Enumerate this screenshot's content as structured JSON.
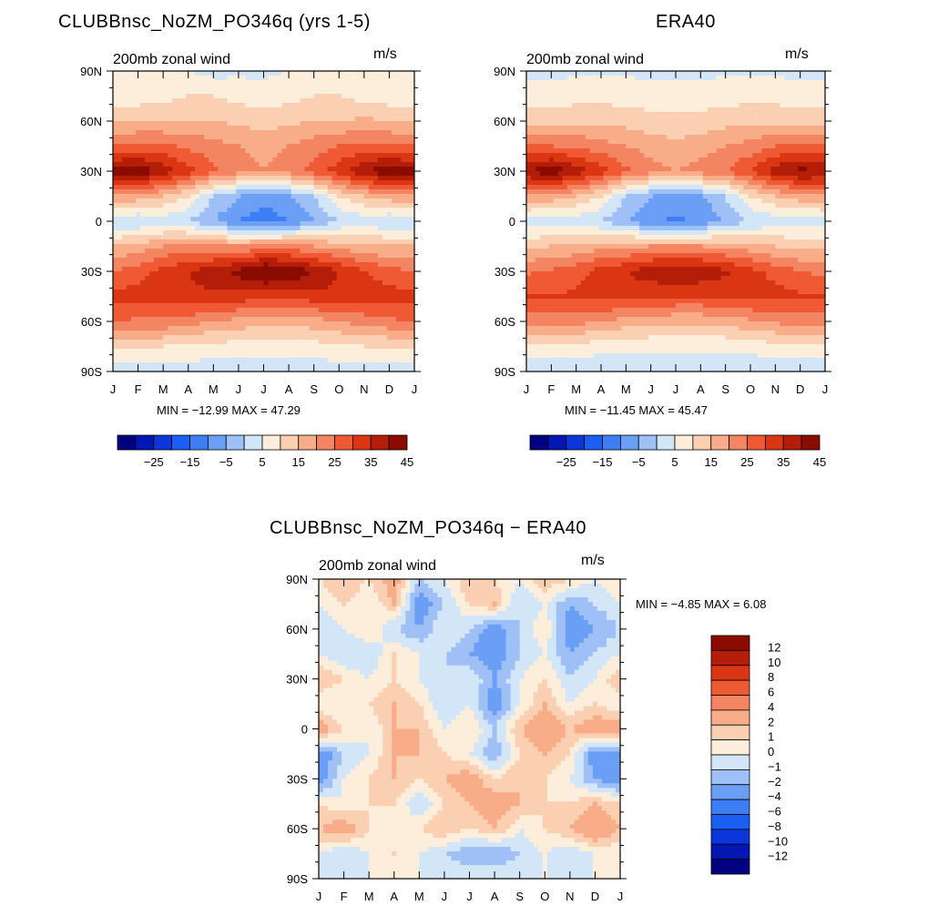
{
  "chart_data": [
    {
      "type": "heatmap",
      "id": "model",
      "title": "CLUBBnsc_NoZM_PO346q (yrs 1-5)",
      "subtitle": "200mb zonal wind",
      "units": "m/s",
      "xlabel": "",
      "ylabel": "",
      "x_ticks": [
        "J",
        "F",
        "M",
        "A",
        "M",
        "J",
        "J",
        "A",
        "S",
        "O",
        "N",
        "D",
        "J"
      ],
      "y_ticks": [
        "90N",
        "60N",
        "30N",
        "0",
        "30S",
        "60S",
        "90S"
      ],
      "ylim": [
        -90,
        90
      ],
      "stats": "MIN = −12.99 MAX =   47.29",
      "min": -12.99,
      "max": 47.29,
      "levels": [
        -30,
        -25,
        -20,
        -15,
        -10,
        -5,
        0,
        5,
        10,
        15,
        20,
        25,
        30,
        35,
        40,
        45
      ],
      "colorbar_labels": [
        "−25",
        "−15",
        "−5",
        "5",
        "15",
        "25",
        "35",
        "45"
      ],
      "field": {
        "lat": [
          90,
          75,
          60,
          45,
          30,
          15,
          0,
          -15,
          -30,
          -45,
          -60,
          -75,
          -90
        ],
        "months": [
          "Jan",
          "Feb",
          "Mar",
          "Apr",
          "May",
          "Jun",
          "Jul",
          "Aug",
          "Sep",
          "Oct",
          "Nov",
          "Dec",
          "Jan"
        ],
        "values": [
          [
            5,
            5,
            5,
            5,
            3,
            4,
            4,
            5,
            5,
            5,
            5,
            5,
            5
          ],
          [
            7,
            7,
            8,
            10,
            10,
            8,
            7,
            8,
            10,
            10,
            8,
            7,
            7
          ],
          [
            14,
            15,
            15,
            15,
            15,
            14,
            13,
            14,
            15,
            15,
            16,
            15,
            14
          ],
          [
            25,
            26,
            26,
            24,
            22,
            20,
            18,
            20,
            23,
            25,
            27,
            26,
            25
          ],
          [
            42,
            45,
            38,
            32,
            26,
            22,
            20,
            22,
            27,
            33,
            40,
            44,
            42
          ],
          [
            20,
            18,
            15,
            10,
            0,
            -5,
            -8,
            -6,
            0,
            10,
            15,
            18,
            20
          ],
          [
            0,
            0,
            2,
            0,
            -5,
            -10,
            -13,
            -10,
            -5,
            0,
            2,
            0,
            0
          ],
          [
            15,
            17,
            20,
            22,
            20,
            20,
            22,
            22,
            20,
            18,
            16,
            15,
            15
          ],
          [
            25,
            28,
            32,
            35,
            38,
            42,
            47,
            45,
            40,
            35,
            30,
            27,
            25
          ],
          [
            32,
            32,
            33,
            34,
            34,
            33,
            32,
            32,
            33,
            34,
            33,
            32,
            32
          ],
          [
            25,
            24,
            24,
            22,
            20,
            18,
            16,
            16,
            18,
            20,
            22,
            24,
            25
          ],
          [
            10,
            10,
            10,
            9,
            8,
            8,
            8,
            8,
            8,
            9,
            10,
            10,
            10
          ],
          [
            2,
            2,
            2,
            2,
            2,
            2,
            2,
            2,
            2,
            2,
            2,
            2,
            2
          ]
        ]
      }
    },
    {
      "type": "heatmap",
      "id": "obs",
      "title": "ERA40",
      "subtitle": "200mb zonal wind",
      "units": "m/s",
      "xlabel": "",
      "ylabel": "",
      "x_ticks": [
        "J",
        "F",
        "M",
        "A",
        "M",
        "J",
        "J",
        "A",
        "S",
        "O",
        "N",
        "D",
        "J"
      ],
      "y_ticks": [
        "90N",
        "60N",
        "30N",
        "0",
        "30S",
        "60S",
        "90S"
      ],
      "ylim": [
        -90,
        90
      ],
      "stats": "MIN = −11.45 MAX =   45.47",
      "min": -11.45,
      "max": 45.47,
      "levels": [
        -30,
        -25,
        -20,
        -15,
        -10,
        -5,
        0,
        5,
        10,
        15,
        20,
        25,
        30,
        35,
        40,
        45
      ],
      "colorbar_labels": [
        "−25",
        "−15",
        "−5",
        "5",
        "15",
        "25",
        "35",
        "45"
      ],
      "field": {
        "lat": [
          90,
          75,
          60,
          45,
          30,
          15,
          0,
          -15,
          -30,
          -45,
          -60,
          -75,
          -90
        ],
        "months": [
          "Jan",
          "Feb",
          "Mar",
          "Apr",
          "May",
          "Jun",
          "Jul",
          "Aug",
          "Sep",
          "Oct",
          "Nov",
          "Dec",
          "Jan"
        ],
        "values": [
          [
            4,
            4,
            4,
            4,
            4,
            4,
            4,
            4,
            4,
            4,
            4,
            4,
            4
          ],
          [
            7,
            7,
            8,
            8,
            8,
            7,
            7,
            7,
            8,
            8,
            8,
            7,
            7
          ],
          [
            13,
            13,
            14,
            14,
            13,
            12,
            12,
            12,
            13,
            14,
            14,
            13,
            13
          ],
          [
            25,
            25,
            24,
            22,
            20,
            18,
            16,
            18,
            20,
            22,
            25,
            26,
            25
          ],
          [
            40,
            44,
            38,
            32,
            26,
            22,
            20,
            22,
            25,
            30,
            38,
            42,
            40
          ],
          [
            20,
            18,
            15,
            10,
            0,
            -5,
            -8,
            -6,
            0,
            10,
            15,
            18,
            20
          ],
          [
            2,
            2,
            2,
            0,
            -5,
            -9,
            -11,
            -9,
            -4,
            0,
            2,
            2,
            2
          ],
          [
            14,
            15,
            16,
            18,
            19,
            20,
            20,
            20,
            19,
            17,
            15,
            14,
            14
          ],
          [
            24,
            26,
            28,
            32,
            35,
            38,
            40,
            39,
            36,
            32,
            28,
            25,
            24
          ],
          [
            30,
            30,
            31,
            32,
            32,
            31,
            30,
            30,
            31,
            32,
            32,
            31,
            30
          ],
          [
            22,
            22,
            22,
            20,
            18,
            17,
            16,
            16,
            17,
            19,
            21,
            22,
            22
          ],
          [
            8,
            8,
            8,
            7,
            6,
            6,
            6,
            6,
            6,
            7,
            8,
            8,
            8
          ],
          [
            1,
            1,
            1,
            1,
            1,
            1,
            1,
            1,
            1,
            1,
            1,
            1,
            1
          ]
        ]
      }
    },
    {
      "type": "heatmap",
      "id": "diff",
      "title": "CLUBBnsc_NoZM_PO346q − ERA40",
      "subtitle": "200mb zonal wind",
      "units": "m/s",
      "xlabel": "",
      "ylabel": "",
      "x_ticks": [
        "J",
        "F",
        "M",
        "A",
        "M",
        "J",
        "J",
        "A",
        "S",
        "O",
        "N",
        "D",
        "J"
      ],
      "y_ticks": [
        "90N",
        "60N",
        "30N",
        "0",
        "30S",
        "60S",
        "90S"
      ],
      "ylim": [
        -90,
        90
      ],
      "stats": "MIN =   −4.85 MAX =    6.08",
      "min": -4.85,
      "max": 6.08,
      "levels": [
        -12,
        -10,
        -8,
        -6,
        -4,
        -2,
        -1,
        0,
        1,
        2,
        4,
        6,
        8,
        10,
        12
      ],
      "colorbar_labels": [
        "12",
        "10",
        "8",
        "6",
        "4",
        "2",
        "1",
        "0",
        "−1",
        "−2",
        "−4",
        "−6",
        "−8",
        "−10",
        "−12"
      ],
      "field": {
        "lat": [
          90,
          75,
          60,
          45,
          30,
          15,
          0,
          -15,
          -30,
          -45,
          -60,
          -75,
          -90
        ],
        "months": [
          "Jan",
          "Feb",
          "Mar",
          "Apr",
          "May",
          "Jun",
          "Jul",
          "Aug",
          "Sep",
          "Oct",
          "Nov",
          "Dec",
          "Jan"
        ],
        "values": [
          [
            1,
            2,
            1,
            3,
            -1,
            0,
            2,
            1,
            0,
            2,
            1,
            0,
            1
          ],
          [
            0,
            1,
            0,
            2,
            -3,
            -1,
            1,
            2,
            -1,
            0,
            -2,
            -1,
            0
          ],
          [
            -1,
            0,
            1,
            -1,
            -2,
            0,
            -1,
            -3,
            -1,
            1,
            -3,
            -2,
            -1
          ],
          [
            0,
            -1,
            -1,
            1,
            0,
            -1,
            -2,
            -3,
            -1,
            0,
            -2,
            -1,
            0
          ],
          [
            2,
            1,
            0,
            1,
            0,
            -1,
            0,
            -2,
            0,
            1,
            -1,
            0,
            2
          ],
          [
            0,
            0,
            1,
            2,
            1,
            -1,
            0,
            -3,
            0,
            2,
            0,
            1,
            0
          ],
          [
            3,
            1,
            0,
            2,
            2,
            0,
            1,
            -1,
            2,
            3,
            2,
            3,
            3
          ],
          [
            -3,
            -1,
            0,
            2,
            2,
            1,
            0,
            -2,
            1,
            2,
            1,
            -3,
            -3
          ],
          [
            -3,
            0,
            1,
            2,
            1,
            2,
            3,
            1,
            2,
            1,
            0,
            -2,
            -3
          ],
          [
            1,
            0,
            1,
            1,
            -1,
            1,
            2,
            3,
            2,
            1,
            1,
            2,
            1
          ],
          [
            2,
            3,
            1,
            0,
            1,
            2,
            1,
            2,
            0,
            1,
            2,
            4,
            2
          ],
          [
            0,
            -1,
            0,
            1,
            0,
            -1,
            -2,
            -2,
            -1,
            0,
            -1,
            0,
            0
          ],
          [
            0,
            0,
            0,
            0,
            0,
            0,
            0,
            0,
            0,
            0,
            0,
            0,
            0
          ]
        ]
      }
    }
  ],
  "colors": {
    "blue_red_16": [
      "#000080",
      "#0416b3",
      "#0c36d9",
      "#1a5ef2",
      "#3d7ef5",
      "#6b9ef5",
      "#9ec0f7",
      "#d3e6f8",
      "#fdeedb",
      "#fbcfb2",
      "#f8ad88",
      "#f48563",
      "#ef5a35",
      "#db3614",
      "#b41e08",
      "#8a0b00"
    ],
    "diff_16": [
      "#000080",
      "#0416b3",
      "#0c36d9",
      "#1a5ef2",
      "#3d7ef5",
      "#6b9ef5",
      "#9ec0f7",
      "#d3e6f8",
      "#fdeedb",
      "#fbcfb2",
      "#f8ad88",
      "#f48563",
      "#ef5a35",
      "#db3614",
      "#b41e08",
      "#8a0b00"
    ]
  }
}
